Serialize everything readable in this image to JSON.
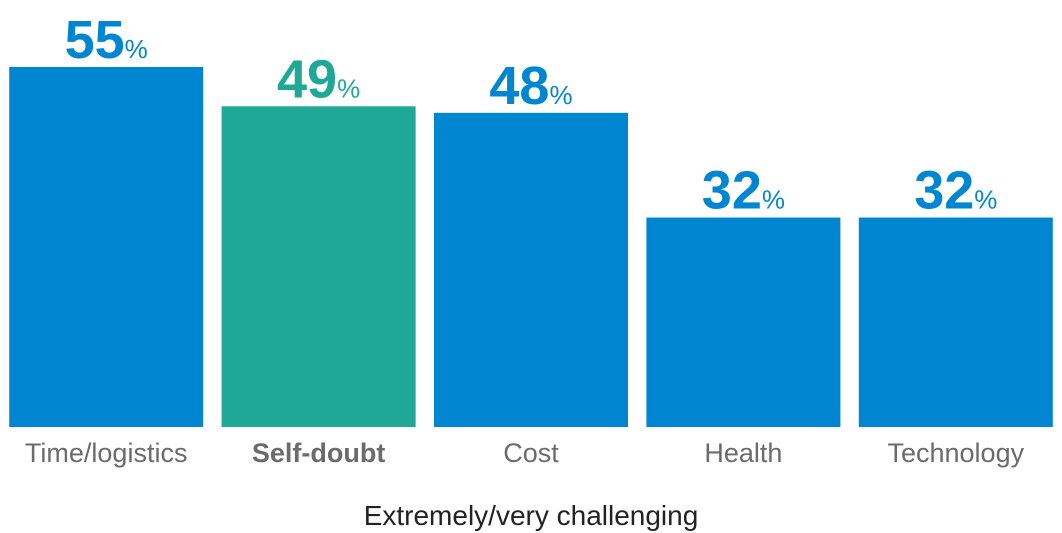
{
  "chart_data": {
    "type": "bar",
    "x_label": "Extremely/very challenging",
    "categories": [
      "Time/logistics",
      "Self-doubt",
      "Cost",
      "Health",
      "Technology"
    ],
    "values": [
      55,
      49,
      48,
      32,
      32
    ],
    "value_labels": [
      "55%",
      "49%",
      "48%",
      "32%",
      "32%"
    ],
    "color": "#0086d1",
    "colors": [
      "#0086d1",
      "#1fa896",
      "#0086d1",
      "#0086d1",
      "#0086d1"
    ],
    "ylim": [
      0,
      55
    ]
  }
}
